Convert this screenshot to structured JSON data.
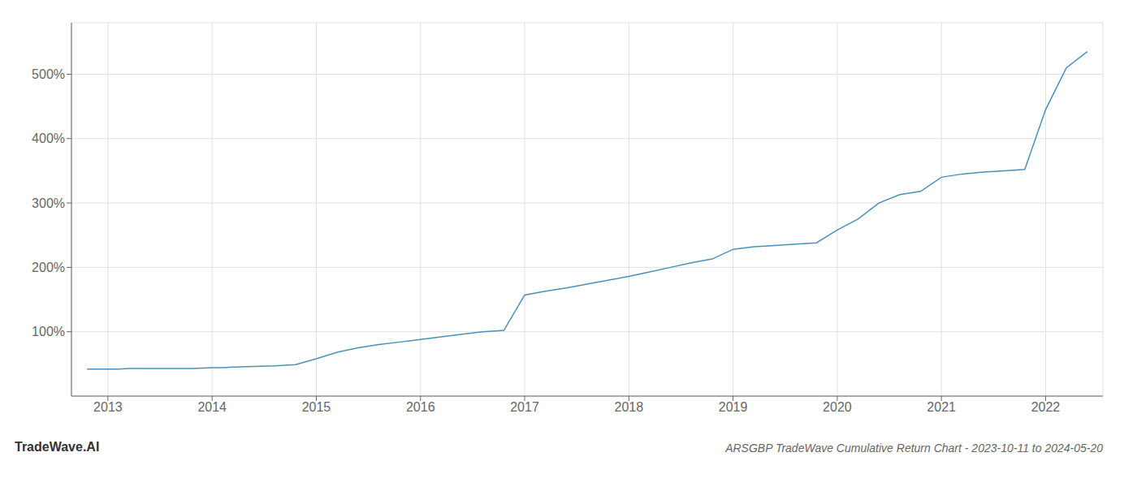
{
  "chart_data": {
    "type": "line",
    "title": "ARSGBP TradeWave Cumulative Return Chart - 2023-10-11 to 2024-05-20",
    "annotations": [
      "TradeWave.AI"
    ],
    "x": [
      2012.8,
      2013.0,
      2013.1,
      2013.2,
      2013.4,
      2013.6,
      2013.8,
      2014.0,
      2014.1,
      2014.2,
      2014.4,
      2014.6,
      2014.8,
      2015.0,
      2015.2,
      2015.4,
      2015.6,
      2015.8,
      2016.0,
      2016.2,
      2016.4,
      2016.6,
      2016.8,
      2017.0,
      2017.2,
      2017.4,
      2017.6,
      2017.8,
      2018.0,
      2018.2,
      2018.4,
      2018.6,
      2018.8,
      2019.0,
      2019.2,
      2019.4,
      2019.6,
      2019.8,
      2020.0,
      2020.2,
      2020.4,
      2020.6,
      2020.8,
      2021.0,
      2021.2,
      2021.4,
      2021.6,
      2021.8,
      2022.0,
      2022.2,
      2022.4
    ],
    "values": [
      42,
      42,
      42,
      43,
      43,
      43,
      43,
      44,
      44,
      45,
      46,
      47,
      49,
      58,
      68,
      75,
      80,
      84,
      88,
      92,
      96,
      100,
      102,
      157,
      163,
      168,
      174,
      180,
      186,
      193,
      200,
      207,
      213,
      228,
      232,
      234,
      236,
      238,
      258,
      275,
      300,
      313,
      318,
      340,
      345,
      348,
      350,
      352,
      445,
      510,
      535
    ],
    "color": "#4a90b8",
    "xlim": [
      2012.65,
      2022.55
    ],
    "xticks": [
      2013,
      2014,
      2015,
      2016,
      2017,
      2018,
      2019,
      2020,
      2021,
      2022
    ],
    "ylim": [
      0,
      580
    ],
    "yticks": [
      {
        "value": 100,
        "label": "100%"
      },
      {
        "value": 200,
        "label": "200%"
      },
      {
        "value": 300,
        "label": "300%"
      },
      {
        "value": 400,
        "label": "400%"
      },
      {
        "value": 500,
        "label": "500%"
      }
    ],
    "grid": true
  }
}
